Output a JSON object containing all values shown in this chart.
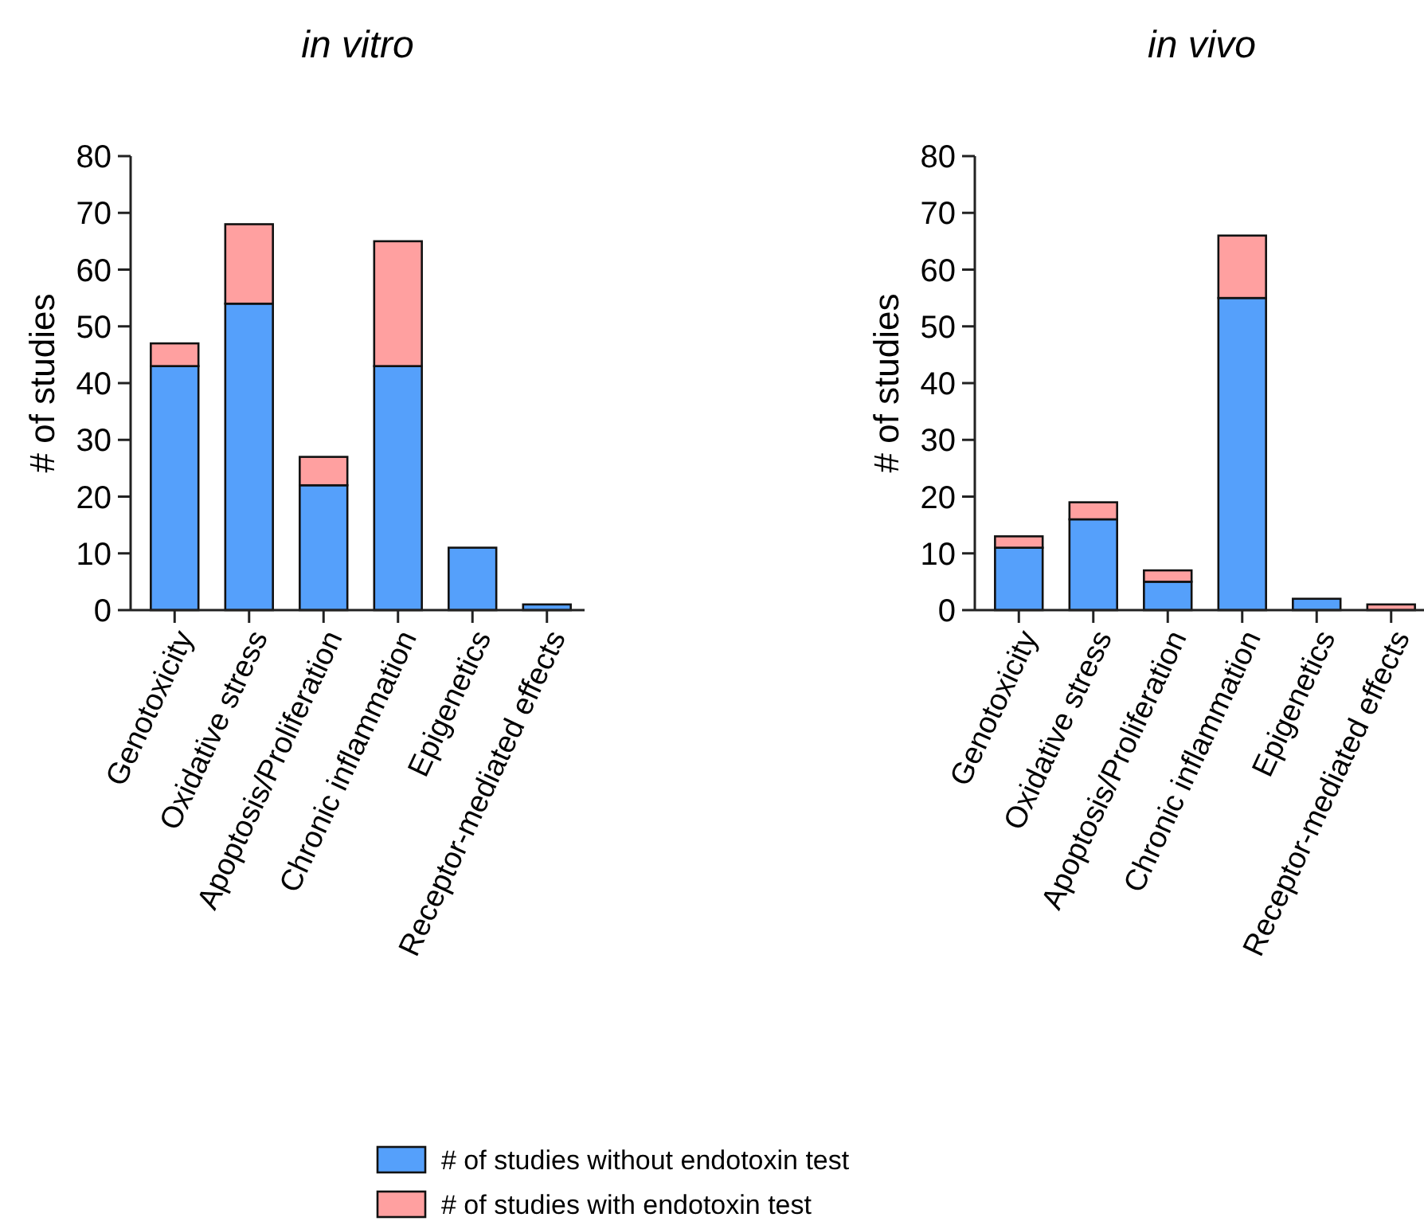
{
  "chart_data": [
    {
      "type": "bar",
      "title": "in vitro",
      "ylabel": "# of studies",
      "categories": [
        "Genotoxicity",
        "Oxidative stress",
        "Apoptosis/Proliferation",
        "Chronic inflammation",
        "Epigenetics",
        "Receptor-mediated effects"
      ],
      "stacked": true,
      "ylim": [
        0,
        80
      ],
      "yticks": [
        0,
        10,
        20,
        30,
        40,
        50,
        60,
        70,
        80
      ],
      "legend": "bottom",
      "series": [
        {
          "name": "# of studies without endotoxin test",
          "color": "#55a0fb",
          "values": [
            43,
            54,
            22,
            43,
            11,
            1
          ]
        },
        {
          "name": "# of studies with endotoxin test",
          "color": "#ffa0a0",
          "values": [
            4,
            14,
            5,
            22,
            0,
            0
          ]
        }
      ]
    },
    {
      "type": "bar",
      "title": "in vivo",
      "ylabel": "# of studies",
      "categories": [
        "Genotoxicity",
        "Oxidative stress",
        "Apoptosis/Proliferation",
        "Chronic inflammation",
        "Epigenetics",
        "Receptor-mediated effects"
      ],
      "stacked": true,
      "ylim": [
        0,
        80
      ],
      "yticks": [
        0,
        10,
        20,
        30,
        40,
        50,
        60,
        70,
        80
      ],
      "series": [
        {
          "color": "#55a0fb",
          "values": [
            11,
            16,
            5,
            55,
            2,
            0
          ]
        },
        {
          "color": "#ffa0a0",
          "values": [
            2,
            3,
            2,
            11,
            0,
            1
          ]
        }
      ]
    }
  ]
}
